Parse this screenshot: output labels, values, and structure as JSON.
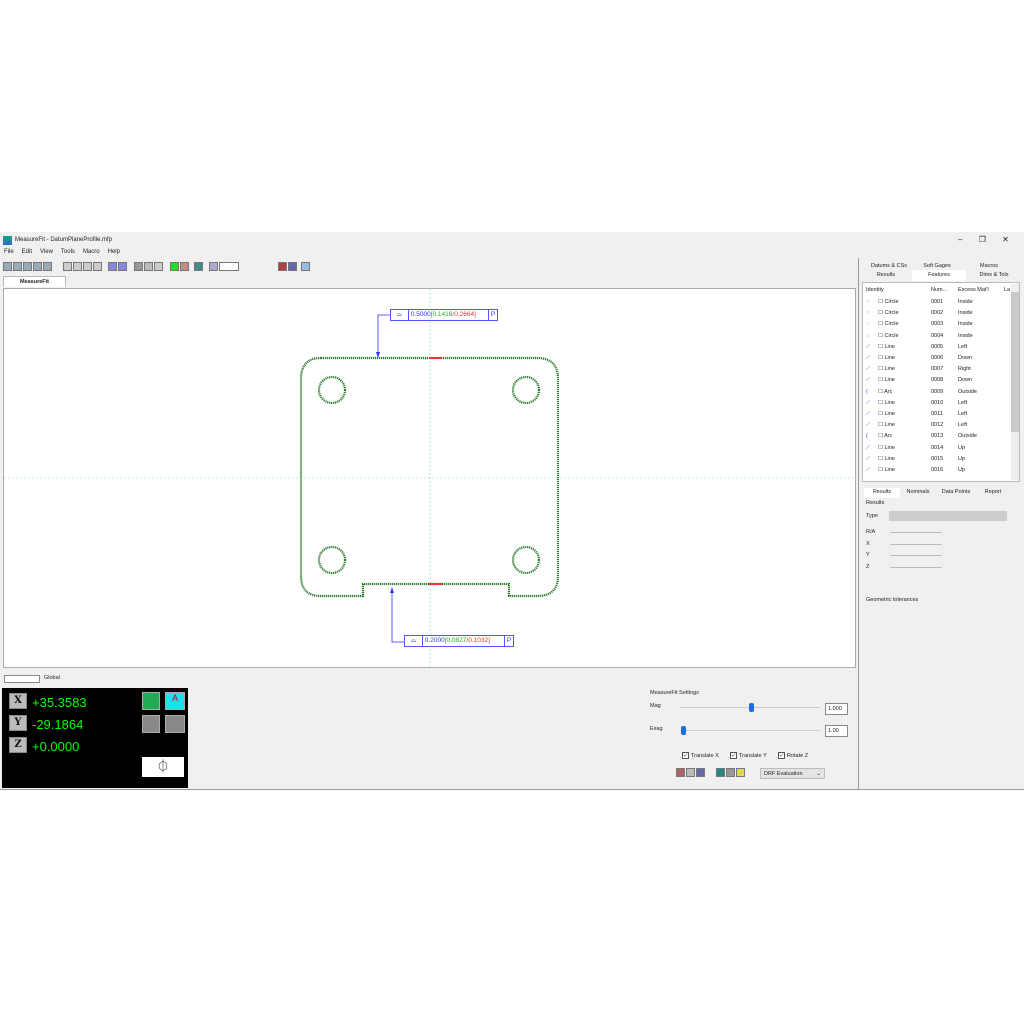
{
  "window": {
    "title": "MeasureFit - DatumPlaneProfile.mfp",
    "controls": [
      "–",
      "❐",
      "✕"
    ]
  },
  "menu": [
    "File",
    "Edit",
    "View",
    "Tools",
    "Macro",
    "Help"
  ],
  "doc_tab": "MeasureFit",
  "view_tabs": [
    "Global"
  ],
  "fcf_top": {
    "nominal": "0.5000",
    "low": "[0.1416",
    "high": "/0.2664]",
    "modifier": "P"
  },
  "fcf_bottom": {
    "nominal": "0.2000",
    "low": "[0.0827",
    "high": "/0.1032]",
    "modifier": "P"
  },
  "dro": {
    "x_label": "X",
    "y_label": "Y",
    "z_label": "Z",
    "x": "+35.3583",
    "y": "-29.1864",
    "z": "+0.0000"
  },
  "right_tabs_top": [
    "Datums & CSs",
    "Soft Gages",
    "Macros",
    "Results",
    "Features",
    "Dims & Tols"
  ],
  "features": {
    "columns": [
      "Identity",
      "Num...",
      "Excess Mat'l",
      "La"
    ],
    "rows": [
      [
        "Circle",
        "0001",
        "Inside",
        "circle"
      ],
      [
        "Circle",
        "0002",
        "Inside",
        "circle"
      ],
      [
        "Circle",
        "0003",
        "Inside",
        "circle"
      ],
      [
        "Circle",
        "0004",
        "Inside",
        "circle"
      ],
      [
        "Line",
        "0005",
        "Left",
        "line"
      ],
      [
        "Line",
        "0006",
        "Down",
        "line"
      ],
      [
        "Line",
        "0007",
        "Right",
        "line"
      ],
      [
        "Line",
        "0008",
        "Down",
        "line"
      ],
      [
        "Arc",
        "0009",
        "Outside",
        "arc"
      ],
      [
        "Line",
        "0010",
        "Left",
        "line"
      ],
      [
        "Line",
        "0011",
        "Left",
        "line"
      ],
      [
        "Line",
        "0012",
        "Left",
        "line"
      ],
      [
        "Arc",
        "0013",
        "Outside",
        "arc"
      ],
      [
        "Line",
        "0014",
        "Up",
        "line"
      ],
      [
        "Line",
        "0015",
        "Up",
        "line"
      ],
      [
        "Line",
        "0016",
        "Up",
        "line"
      ]
    ]
  },
  "right_tabs_bottom": [
    "Results",
    "Nominals",
    "Data Points",
    "Report"
  ],
  "results": {
    "group": "Results",
    "type_label": "Type",
    "fields": [
      "R/A",
      "X",
      "Y",
      "Z"
    ],
    "geo_tol": "Geometric tolerances"
  },
  "settings": {
    "title": "MeasureFit Settings",
    "mag_label": "Mag",
    "mag_value": "1.000",
    "mag_fraction": 0.5,
    "exag_label": "Exag",
    "exag_value": "1.00",
    "exag_fraction": 0.0,
    "checks": [
      {
        "label": "Translate X",
        "checked": true
      },
      {
        "label": "Translate Y",
        "checked": true
      },
      {
        "label": "Rotate Z",
        "checked": true
      }
    ],
    "evaluation": "DRF Evaluation"
  },
  "colors": {
    "part": "#2a7a2a",
    "dro_bg": "#000000",
    "dro_text": "#00e000",
    "fcf": "#3333ff"
  }
}
